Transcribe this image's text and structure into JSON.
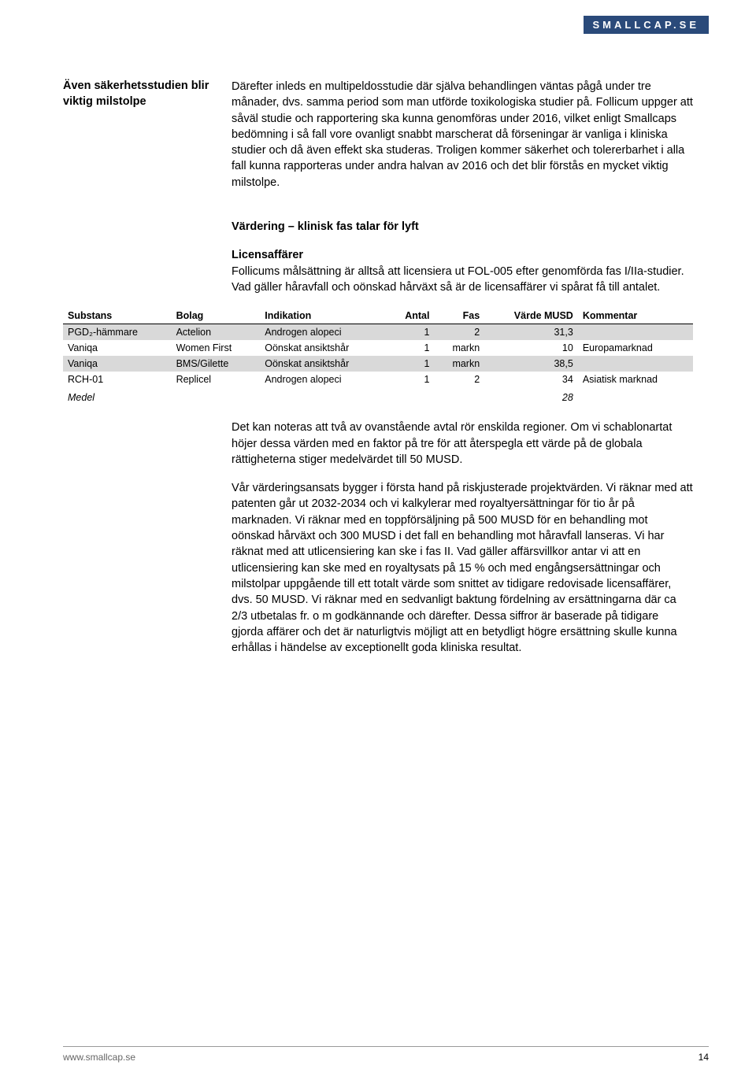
{
  "logo": "SMALLCAP.SE",
  "sidebar_note": "Även säkerhetsstudien blir viktig milstolpe",
  "paragraph_intro": "Därefter inleds en multipeldosstudie där själva behandlingen väntas pågå under tre månader, dvs. samma period som man utförde toxikologiska studier på. Follicum uppger att såväl studie och rapportering ska kunna genomföras under 2016, vilket enligt Smallcaps bedömning i så fall vore ovanligt snabbt marscherat då förseningar är vanliga i kliniska studier och då även effekt ska studeras. Troligen kommer säkerhet och tolererbarhet i alla fall kunna rapporteras under andra halvan av 2016 och det blir förstås en mycket viktig milstolpe.",
  "heading_valuation": "Värdering – klinisk fas talar för lyft",
  "subheading_licens": "Licensaffärer",
  "paragraph_licens": "Follicums målsättning är alltså att licensiera ut FOL-005 efter genomförda fas I/IIa-studier. Vad gäller håravfall och oönskad hårväxt så är de licensaffärer vi spårat få till antalet.",
  "table": {
    "columns": [
      "Substans",
      "Bolag",
      "Indikation",
      "Antal",
      "Fas",
      "Värde MUSD",
      "Kommentar"
    ],
    "rows": [
      {
        "shaded": true,
        "cells": [
          "PGD₂-hämmare",
          "Actelion",
          "Androgen alopeci",
          "1",
          "2",
          "31,3",
          ""
        ]
      },
      {
        "shaded": false,
        "cells": [
          "Vaniqa",
          "Women First",
          "Oönskat ansiktshår",
          "1",
          "markn",
          "10",
          "Europamarknad"
        ]
      },
      {
        "shaded": true,
        "cells": [
          "Vaniqa",
          "BMS/Gilette",
          "Oönskat ansiktshår",
          "1",
          "markn",
          "38,5",
          ""
        ]
      },
      {
        "shaded": false,
        "cells": [
          "RCH-01",
          "Replicel",
          "Androgen alopeci",
          "1",
          "2",
          "34",
          "Asiatisk marknad"
        ]
      }
    ],
    "medel_label": "Medel",
    "medel_value": "28"
  },
  "paragraph_after_table_1": "Det kan noteras att två av ovanstående avtal rör enskilda regioner. Om vi schablonartat höjer dessa värden med en faktor på tre för att återspegla ett värde på de globala rättigheterna stiger medelvärdet till 50 MUSD.",
  "paragraph_after_table_2": "Vår värderingsansats bygger i första hand på riskjusterade projektvärden. Vi räknar med att patenten går ut 2032-2034 och vi kalkylerar med royaltyersättningar för tio år på marknaden. Vi räknar med en toppförsäljning på 500 MUSD för en behandling mot oönskad hårväxt och 300 MUSD i det fall en behandling mot håravfall lanseras. Vi har räknat med att utlicensiering kan ske i fas II. Vad gäller affärsvillkor antar vi att en utlicensiering kan ske med en royaltysats på 15 % och med engångsersättningar och milstolpar uppgående till ett totalt värde som snittet av tidigare redovisade licensaffärer, dvs. 50 MUSD. Vi räknar med en sedvanligt baktung fördelning av ersättningarna där ca 2/3 utbetalas fr. o m godkännande och därefter. Dessa siffror är baserade på tidigare gjorda affärer och det är naturligtvis möjligt att en betydligt högre ersättning skulle kunna erhållas i händelse av exceptionellt goda kliniska resultat.",
  "footer_url": "www.smallcap.se",
  "page_number": "14"
}
